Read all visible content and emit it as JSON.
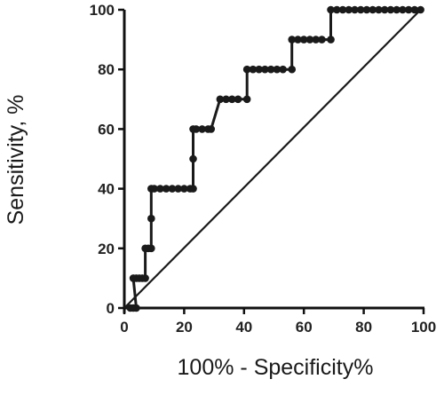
{
  "chart_data": {
    "type": "line",
    "xlabel": "100% - Specificity%",
    "ylabel": "Sensitivity, %",
    "xlim": [
      0,
      100
    ],
    "ylim": [
      0,
      100
    ],
    "xticks": [
      "0",
      "20",
      "40",
      "60",
      "80",
      "100"
    ],
    "yticks": [
      "0",
      "20",
      "40",
      "60",
      "80",
      "100"
    ],
    "grid": false,
    "legend": "none",
    "colors": {
      "curve": "#1a1a1a",
      "axis": "#111111"
    },
    "series": [
      {
        "values": [
          [
            2,
            0
          ],
          [
            3,
            0
          ],
          [
            4,
            0
          ],
          [
            3,
            10
          ],
          [
            4,
            10
          ],
          [
            5,
            10
          ],
          [
            6,
            10
          ],
          [
            7,
            10
          ],
          [
            7,
            20
          ],
          [
            8,
            20
          ],
          [
            9,
            20
          ],
          [
            9,
            30
          ],
          [
            9,
            40
          ],
          [
            10,
            40
          ],
          [
            12,
            40
          ],
          [
            14,
            40
          ],
          [
            16,
            40
          ],
          [
            18,
            40
          ],
          [
            20,
            40
          ],
          [
            22,
            40
          ],
          [
            23,
            40
          ],
          [
            23,
            50
          ],
          [
            23,
            60
          ],
          [
            24,
            60
          ],
          [
            26,
            60
          ],
          [
            28,
            60
          ],
          [
            29,
            60
          ],
          [
            32,
            70
          ],
          [
            34,
            70
          ],
          [
            36,
            70
          ],
          [
            38,
            70
          ],
          [
            41,
            70
          ],
          [
            41,
            80
          ],
          [
            43,
            80
          ],
          [
            45,
            80
          ],
          [
            47,
            80
          ],
          [
            49,
            80
          ],
          [
            51,
            80
          ],
          [
            53,
            80
          ],
          [
            56,
            80
          ],
          [
            56,
            90
          ],
          [
            58,
            90
          ],
          [
            60,
            90
          ],
          [
            62,
            90
          ],
          [
            64,
            90
          ],
          [
            66,
            90
          ],
          [
            69,
            90
          ],
          [
            69,
            100
          ],
          [
            71,
            100
          ],
          [
            73,
            100
          ],
          [
            75,
            100
          ],
          [
            77,
            100
          ],
          [
            79,
            100
          ],
          [
            81,
            100
          ],
          [
            83,
            100
          ],
          [
            85,
            100
          ],
          [
            87,
            100
          ],
          [
            89,
            100
          ],
          [
            91,
            100
          ],
          [
            93,
            100
          ],
          [
            95,
            100
          ],
          [
            97,
            100
          ],
          [
            99,
            100
          ]
        ]
      },
      {
        "type": "reference-line",
        "values": [
          [
            0,
            0
          ],
          [
            99,
            100
          ]
        ]
      }
    ]
  }
}
